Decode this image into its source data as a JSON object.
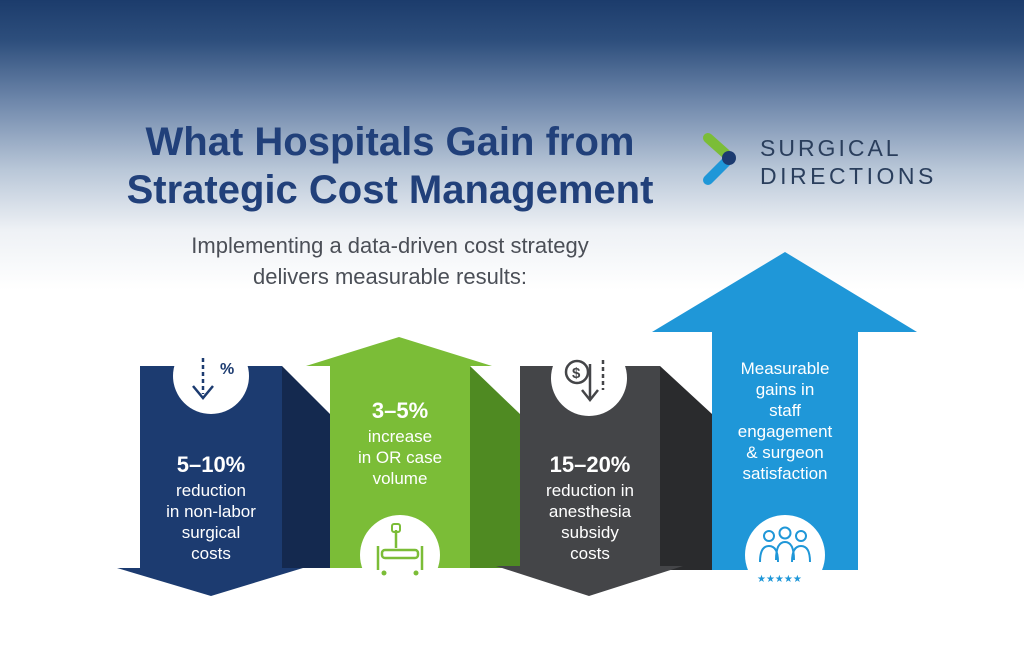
{
  "header": {
    "title_line1": "What Hospitals Gain from",
    "title_line2": "Strategic Cost Management",
    "subtitle_line1": "Implementing a data-driven cost strategy",
    "subtitle_line2": "delivers measurable results:"
  },
  "logo": {
    "line1": "SURGICAL",
    "line2": "DIRECTIONS"
  },
  "results": [
    {
      "value": "5–10%",
      "lines": [
        "reduction",
        "in non-labor",
        "surgical",
        "costs"
      ],
      "icon": "percent-down-arrow-icon",
      "color": "#1c3b70"
    },
    {
      "value": "3–5%",
      "lines": [
        "increase",
        "in OR case",
        "volume"
      ],
      "icon": "hospital-bed-icon",
      "color": "#7bbd37"
    },
    {
      "value": "15–20%",
      "lines": [
        "reduction in",
        "anesthesia",
        "subsidy",
        "costs"
      ],
      "icon": "dollar-down-arrow-icon",
      "color": "#444548"
    },
    {
      "value": "",
      "lines": [
        "Measurable",
        "gains in",
        "staff",
        "engagement",
        "& surgeon",
        "satisfaction"
      ],
      "icon": "staff-rating-stars-icon",
      "color": "#1f97d8"
    }
  ]
}
